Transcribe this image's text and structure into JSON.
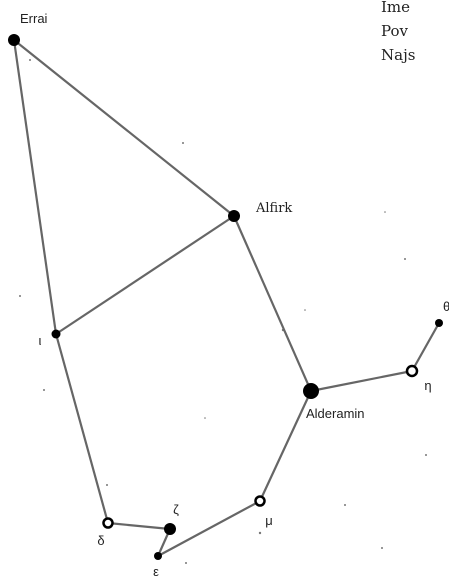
{
  "side_text": [
    "Ime",
    "Pov",
    "Najs"
  ],
  "nodes": [
    {
      "label": "Errai"
    },
    {
      "label": "Alfirk"
    },
    {
      "label": "ι"
    },
    {
      "label": "Alderamin"
    },
    {
      "label": "η"
    },
    {
      "label": "θ"
    },
    {
      "label": "μ"
    },
    {
      "label": "ζ"
    },
    {
      "label": "δ"
    },
    {
      "label": "ε"
    }
  ]
}
